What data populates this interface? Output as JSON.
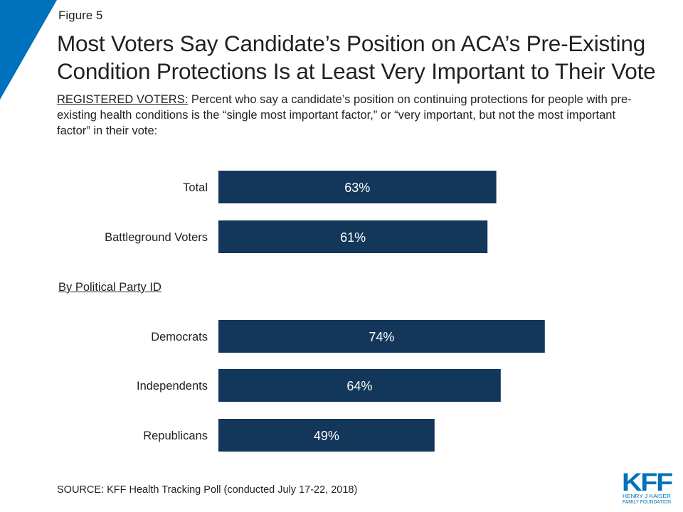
{
  "figure_label": "Figure 5",
  "title": "Most Voters Say Candidate’s Position on ACA’s Pre-Existing\nCondition Protections Is at Least Very Important to Their Vote",
  "subtitle_lead": "REGISTERED VOTERS:",
  "subtitle_rest": " Percent who say a candidate’s position on continuing protections for people with pre-existing health conditions is the “single most important factor,” or “very important, but not the most important factor” in their vote:",
  "group_heading": "By Political Party ID",
  "source": "SOURCE: KFF Health Tracking Poll (conducted July 17-22, 2018)",
  "logo": {
    "mark": "KFF",
    "line1": "HENRY J KAISER",
    "line2": "FAMILY FOUNDATION"
  },
  "colors": {
    "bar": "#13375b",
    "bar_label": "#ffffff",
    "accent": "#0071bc",
    "text": "#231f20"
  },
  "chart_data": {
    "type": "bar",
    "orientation": "horizontal",
    "categories": [
      "Total",
      "Battleground Voters",
      "Democrats",
      "Independents",
      "Republicans"
    ],
    "values": [
      63,
      61,
      74,
      64,
      49
    ],
    "value_labels": [
      "63%",
      "61%",
      "74%",
      "64%",
      "49%"
    ],
    "unit": "%",
    "xlim": [
      0,
      100
    ],
    "grid": false,
    "legend": "none"
  }
}
